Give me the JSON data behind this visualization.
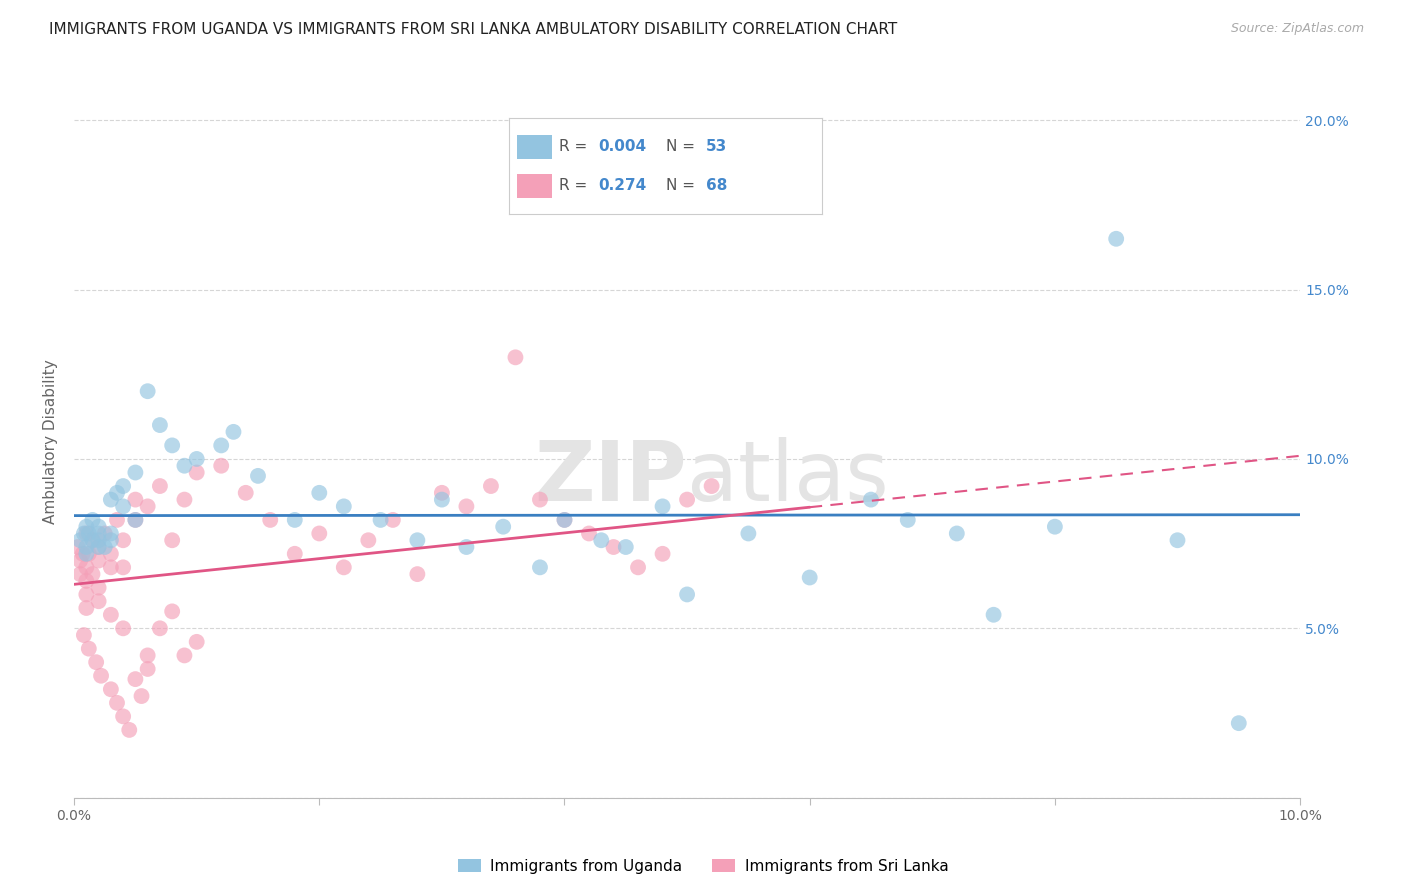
{
  "title": "IMMIGRANTS FROM UGANDA VS IMMIGRANTS FROM SRI LANKA AMBULATORY DISABILITY CORRELATION CHART",
  "source": "Source: ZipAtlas.com",
  "ylabel": "Ambulatory Disability",
  "xlim": [
    0.0,
    0.1
  ],
  "ylim": [
    0.0,
    0.21
  ],
  "xticks": [
    0.0,
    0.02,
    0.04,
    0.06,
    0.08,
    0.1
  ],
  "xtick_labels": [
    "0.0%",
    "",
    "",
    "",
    "",
    "10.0%"
  ],
  "yticks": [
    0.0,
    0.05,
    0.1,
    0.15,
    0.2
  ],
  "ytick_labels": [
    "",
    "5.0%",
    "10.0%",
    "15.0%",
    "20.0%"
  ],
  "legend_blue_label": "Immigrants from Uganda",
  "legend_pink_label": "Immigrants from Sri Lanka",
  "R_blue": "0.004",
  "N_blue": "53",
  "R_pink": "0.274",
  "N_pink": "68",
  "blue_color": "#93c4e0",
  "pink_color": "#f4a0b8",
  "blue_line_color": "#3a7fc1",
  "pink_line_color": "#e05585",
  "watermark_color": "#e4e4e4",
  "background_color": "#ffffff",
  "uganda_x": [
    0.0005,
    0.0008,
    0.001,
    0.001,
    0.001,
    0.0012,
    0.0015,
    0.0015,
    0.002,
    0.002,
    0.002,
    0.002,
    0.0025,
    0.003,
    0.003,
    0.003,
    0.0035,
    0.004,
    0.004,
    0.005,
    0.005,
    0.006,
    0.007,
    0.008,
    0.009,
    0.01,
    0.012,
    0.013,
    0.015,
    0.018,
    0.02,
    0.022,
    0.025,
    0.028,
    0.03,
    0.032,
    0.035,
    0.038,
    0.04,
    0.043,
    0.045,
    0.048,
    0.05,
    0.055,
    0.06,
    0.065,
    0.068,
    0.072,
    0.075,
    0.08,
    0.085,
    0.09,
    0.095
  ],
  "uganda_y": [
    0.076,
    0.078,
    0.074,
    0.08,
    0.072,
    0.078,
    0.076,
    0.082,
    0.074,
    0.078,
    0.076,
    0.08,
    0.074,
    0.088,
    0.078,
    0.076,
    0.09,
    0.092,
    0.086,
    0.096,
    0.082,
    0.12,
    0.11,
    0.104,
    0.098,
    0.1,
    0.104,
    0.108,
    0.095,
    0.082,
    0.09,
    0.086,
    0.082,
    0.076,
    0.088,
    0.074,
    0.08,
    0.068,
    0.082,
    0.076,
    0.074,
    0.086,
    0.06,
    0.078,
    0.065,
    0.088,
    0.082,
    0.078,
    0.054,
    0.08,
    0.165,
    0.076,
    0.022
  ],
  "srilanka_x": [
    0.0003,
    0.0005,
    0.0005,
    0.0007,
    0.001,
    0.001,
    0.001,
    0.001,
    0.001,
    0.0012,
    0.0015,
    0.0015,
    0.002,
    0.002,
    0.002,
    0.002,
    0.0025,
    0.003,
    0.003,
    0.003,
    0.0035,
    0.004,
    0.004,
    0.004,
    0.005,
    0.005,
    0.006,
    0.006,
    0.007,
    0.008,
    0.009,
    0.01,
    0.012,
    0.014,
    0.016,
    0.018,
    0.02,
    0.022,
    0.024,
    0.026,
    0.028,
    0.03,
    0.032,
    0.034,
    0.036,
    0.038,
    0.04,
    0.042,
    0.044,
    0.046,
    0.048,
    0.05,
    0.052,
    0.0008,
    0.0012,
    0.0018,
    0.0022,
    0.003,
    0.0035,
    0.004,
    0.0045,
    0.005,
    0.0055,
    0.006,
    0.007,
    0.008,
    0.009,
    0.01
  ],
  "srilanka_y": [
    0.074,
    0.07,
    0.066,
    0.072,
    0.068,
    0.064,
    0.06,
    0.078,
    0.056,
    0.072,
    0.066,
    0.076,
    0.07,
    0.062,
    0.074,
    0.058,
    0.078,
    0.072,
    0.068,
    0.054,
    0.082,
    0.076,
    0.068,
    0.05,
    0.082,
    0.088,
    0.086,
    0.042,
    0.092,
    0.076,
    0.088,
    0.096,
    0.098,
    0.09,
    0.082,
    0.072,
    0.078,
    0.068,
    0.076,
    0.082,
    0.066,
    0.09,
    0.086,
    0.092,
    0.13,
    0.088,
    0.082,
    0.078,
    0.074,
    0.068,
    0.072,
    0.088,
    0.092,
    0.048,
    0.044,
    0.04,
    0.036,
    0.032,
    0.028,
    0.024,
    0.02,
    0.035,
    0.03,
    0.038,
    0.05,
    0.055,
    0.042,
    0.046
  ]
}
